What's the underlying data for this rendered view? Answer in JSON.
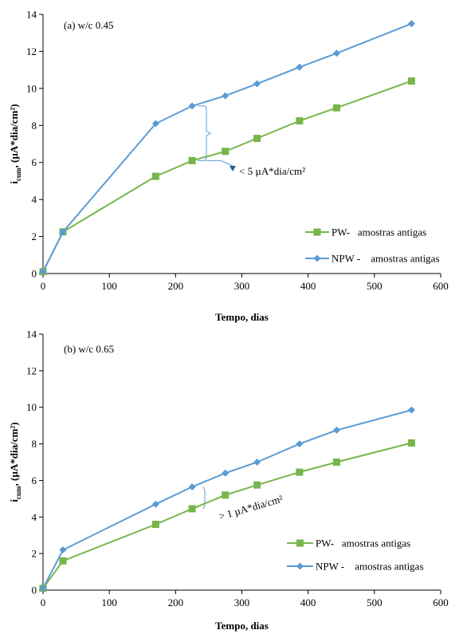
{
  "chart_data": [
    {
      "type": "line",
      "panel_label": "(a)  w/c 0.45",
      "xlabel": "Tempo, dias",
      "ylabel": "i",
      "ylabel_sub": "cum",
      "ylabel_rest": ", (µA*dia/cm²)",
      "xlim": [
        0,
        600
      ],
      "ylim": [
        0,
        14
      ],
      "xticks": [
        "0",
        "100",
        "200",
        "300",
        "400",
        "500",
        "600"
      ],
      "yticks": [
        "0",
        "2",
        "4",
        "6",
        "8",
        "10",
        "12",
        "14"
      ],
      "annotation": "< 5 µA*dia/cm²",
      "legend_position": "bottom-right",
      "grid": false,
      "series": [
        {
          "name": "PW-   amostras antigas",
          "color": "#77b64a",
          "marker": "square",
          "x": [
            0,
            30,
            170,
            225,
            275,
            323,
            387,
            443,
            556
          ],
          "y": [
            0.1,
            2.25,
            5.25,
            6.1,
            6.6,
            7.3,
            8.25,
            8.95,
            10.4
          ]
        },
        {
          "name": "NPW -    amostras antigas",
          "color": "#5b9bd5",
          "marker": "diamond",
          "x": [
            0,
            30,
            170,
            225,
            275,
            323,
            387,
            443,
            556
          ],
          "y": [
            0.1,
            2.25,
            8.1,
            9.05,
            9.6,
            10.25,
            11.15,
            11.9,
            13.5
          ]
        }
      ]
    },
    {
      "type": "line",
      "panel_label": "(b) w/c 0.65",
      "xlabel": "Tempo, dias",
      "ylabel": "i",
      "ylabel_sub": "cum",
      "ylabel_rest": ", (µA*dia/cm²)",
      "xlim": [
        0,
        600
      ],
      "ylim": [
        0,
        14
      ],
      "xticks": [
        "0",
        "100",
        "200",
        "300",
        "400",
        "500",
        "600"
      ],
      "yticks": [
        "0",
        "2",
        "4",
        "6",
        "8",
        "10",
        "12",
        "14"
      ],
      "annotation": "> 1 µA*dia/cm²",
      "legend_position": "bottom-right",
      "grid": false,
      "series": [
        {
          "name": "PW-   amostras antigas",
          "color": "#77b64a",
          "marker": "square",
          "x": [
            0,
            30,
            170,
            225,
            275,
            323,
            387,
            443,
            556
          ],
          "y": [
            0.1,
            1.6,
            3.6,
            4.45,
            5.2,
            5.75,
            6.45,
            7.0,
            8.05
          ]
        },
        {
          "name": "NPW -    amostras antigas",
          "color": "#5b9bd5",
          "marker": "diamond",
          "x": [
            0,
            30,
            170,
            225,
            275,
            323,
            387,
            443,
            556
          ],
          "y": [
            0.1,
            2.2,
            4.7,
            5.65,
            6.4,
            7.0,
            8.0,
            8.75,
            9.85
          ]
        }
      ]
    }
  ]
}
